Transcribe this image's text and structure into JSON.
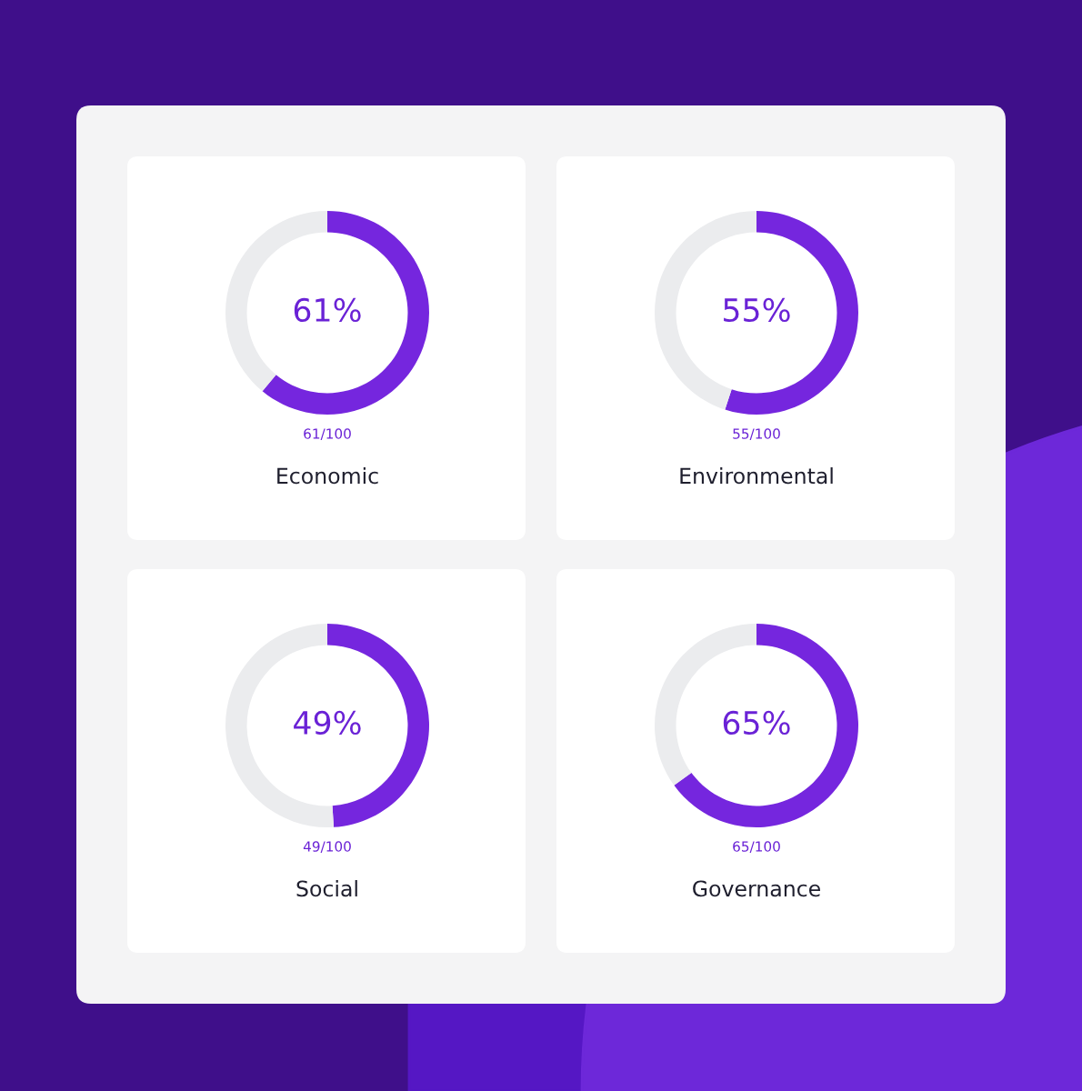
{
  "chart_data": [
    {
      "type": "donut",
      "title": "Economic",
      "categories": [
        null,
        null
      ],
      "values": [
        61,
        39
      ],
      "colors": [
        "#7526de",
        "#ebecee"
      ],
      "annotations": [
        "61%",
        "61/100"
      ]
    },
    {
      "type": "donut",
      "title": "Environmental",
      "categories": [
        null,
        null
      ],
      "values": [
        55,
        45
      ],
      "colors": [
        "#7526de",
        "#ebecee"
      ],
      "annotations": [
        "55%",
        "55/100"
      ]
    },
    {
      "type": "donut",
      "title": "Social",
      "categories": [
        null,
        null
      ],
      "values": [
        49,
        51
      ],
      "colors": [
        "#7526de",
        "#ebecee"
      ],
      "annotations": [
        "49%",
        "49/100"
      ]
    },
    {
      "type": "donut",
      "title": "Governance",
      "categories": [
        null,
        null
      ],
      "values": [
        65,
        35
      ],
      "colors": [
        "#7526de",
        "#ebecee"
      ],
      "annotations": [
        "65%",
        "65/100"
      ]
    }
  ]
}
